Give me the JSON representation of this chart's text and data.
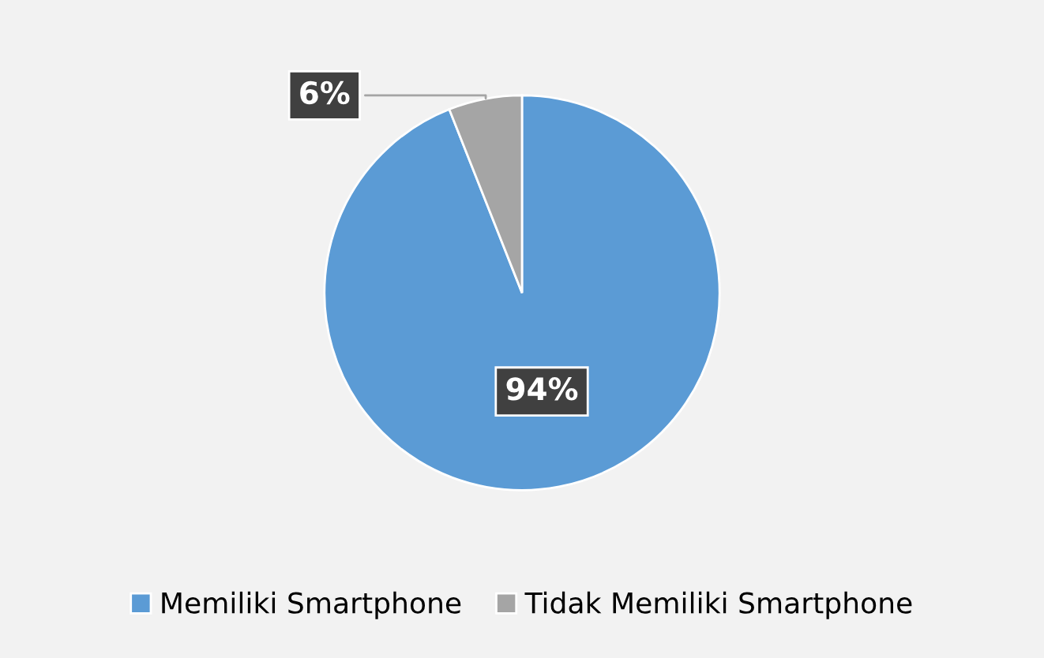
{
  "chart_data": {
    "type": "pie",
    "categories": [
      "Memiliki Smartphone",
      "Tidak Memiliki Smartphone"
    ],
    "values": [
      94,
      6
    ],
    "colors": [
      "#5b9bd5",
      "#a5a5a5"
    ],
    "value_labels": [
      "94%",
      "6%"
    ],
    "legend": "bottom"
  }
}
